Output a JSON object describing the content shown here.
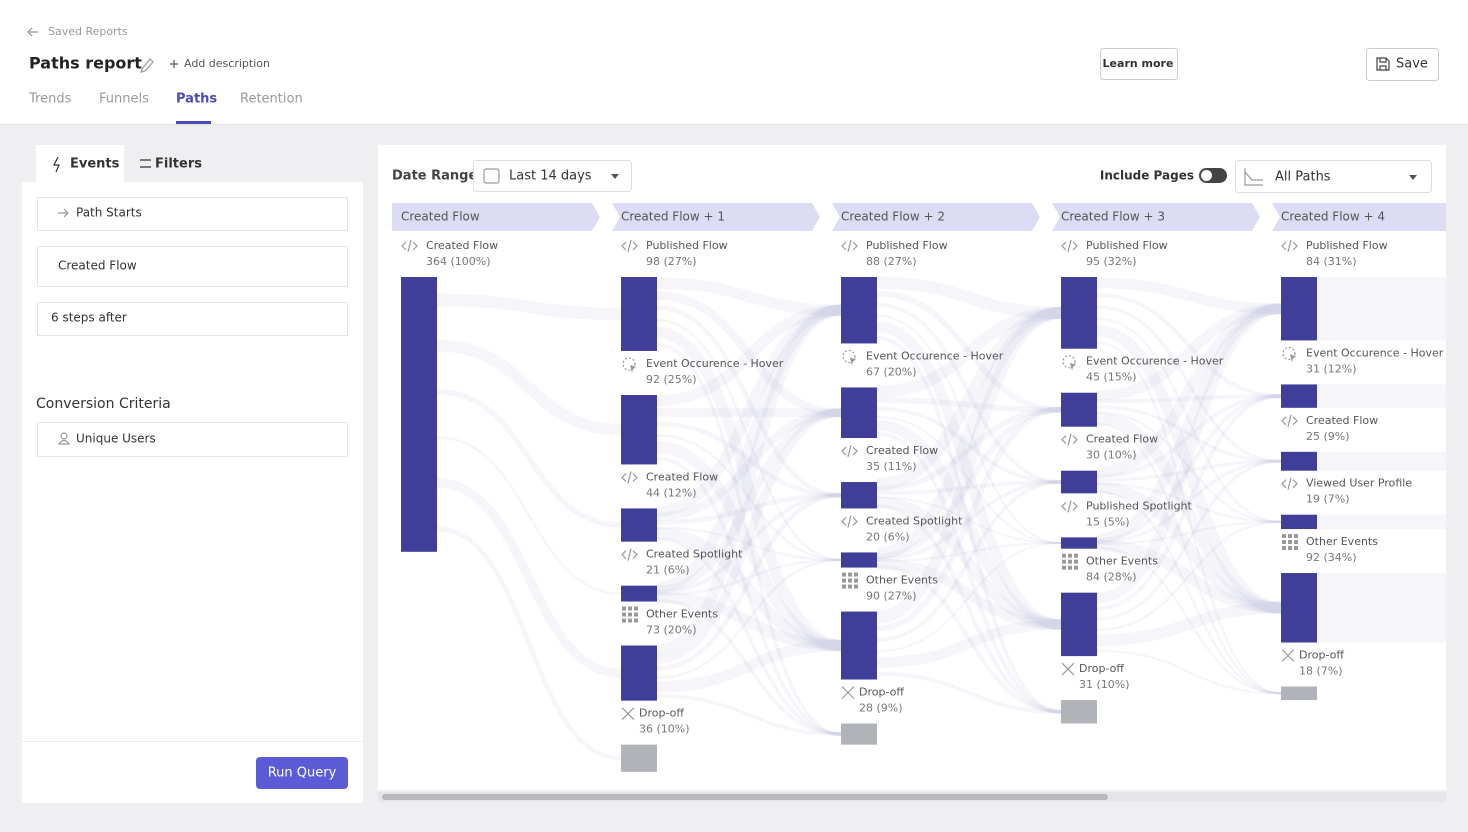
{
  "breadcrumb": "Saved Reports",
  "title": "Paths report",
  "add_description": "Add description",
  "learn_more": "Learn more",
  "save": "Save",
  "tabs": [
    "Trends",
    "Funnels",
    "Paths",
    "Retention"
  ],
  "active_tab": 2,
  "sidebar": {
    "tabs": [
      "Events",
      "Filters"
    ],
    "path_starts": "Path Starts",
    "event": "Created Flow",
    "steps": "6 steps after",
    "conversion_title": "Conversion Criteria",
    "unique_users": "Unique Users",
    "run": "Run Query"
  },
  "toolbar": {
    "date_range_label": "Date Range",
    "date_range": "Last 14 days",
    "include_pages": "Include Pages",
    "paths": "All Paths"
  },
  "columns": [
    {
      "header": "Created Flow",
      "nodes": [
        {
          "name": "Created Flow",
          "icon": "code",
          "count": 364,
          "label": "364 (100%)"
        }
      ]
    },
    {
      "header": "Created Flow + 1",
      "nodes": [
        {
          "name": "Published Flow",
          "icon": "code",
          "count": 98,
          "label": "98 (27%)"
        },
        {
          "name": "Event Occurence - Hover",
          "icon": "cursor",
          "count": 92,
          "label": "92 (25%)"
        },
        {
          "name": "Created Flow",
          "icon": "code",
          "count": 44,
          "label": "44 (12%)"
        },
        {
          "name": "Created Spotlight",
          "icon": "code",
          "count": 21,
          "label": "21 (6%)"
        },
        {
          "name": "Other Events",
          "icon": "grid",
          "count": 73,
          "label": "73 (20%)"
        },
        {
          "name": "Drop-off",
          "icon": "drop",
          "count": 36,
          "label": "36 (10%)"
        }
      ]
    },
    {
      "header": "Created Flow + 2",
      "nodes": [
        {
          "name": "Published Flow",
          "icon": "code",
          "count": 88,
          "label": "88 (27%)"
        },
        {
          "name": "Event Occurence - Hover",
          "icon": "cursor",
          "count": 67,
          "label": "67 (20%)"
        },
        {
          "name": "Created Flow",
          "icon": "code",
          "count": 35,
          "label": "35 (11%)"
        },
        {
          "name": "Created Spotlight",
          "icon": "code",
          "count": 20,
          "label": "20 (6%)"
        },
        {
          "name": "Other Events",
          "icon": "grid",
          "count": 90,
          "label": "90 (27%)"
        },
        {
          "name": "Drop-off",
          "icon": "drop",
          "count": 28,
          "label": "28 (9%)"
        }
      ]
    },
    {
      "header": "Created Flow + 3",
      "nodes": [
        {
          "name": "Published Flow",
          "icon": "code",
          "count": 95,
          "label": "95 (32%)"
        },
        {
          "name": "Event Occurence - Hover",
          "icon": "cursor",
          "count": 45,
          "label": "45 (15%)"
        },
        {
          "name": "Created Flow",
          "icon": "code",
          "count": 30,
          "label": "30 (10%)"
        },
        {
          "name": "Published Spotlight",
          "icon": "code",
          "count": 15,
          "label": "15 (5%)"
        },
        {
          "name": "Other Events",
          "icon": "grid",
          "count": 84,
          "label": "84 (28%)"
        },
        {
          "name": "Drop-off",
          "icon": "drop",
          "count": 31,
          "label": "31 (10%)"
        }
      ]
    },
    {
      "header": "Created Flow + 4",
      "nodes": [
        {
          "name": "Published Flow",
          "icon": "code",
          "count": 84,
          "label": "84 (31%)"
        },
        {
          "name": "Event Occurence - Hover",
          "icon": "cursor",
          "count": 31,
          "label": "31 (12%)"
        },
        {
          "name": "Created Flow",
          "icon": "code",
          "count": 25,
          "label": "25 (9%)"
        },
        {
          "name": "Viewed User Profile",
          "icon": "code",
          "count": 19,
          "label": "19 (7%)"
        },
        {
          "name": "Other Events",
          "icon": "grid",
          "count": 92,
          "label": "92 (34%)"
        },
        {
          "name": "Drop-off",
          "icon": "drop",
          "count": 18,
          "label": "18 (7%)"
        }
      ]
    }
  ]
}
